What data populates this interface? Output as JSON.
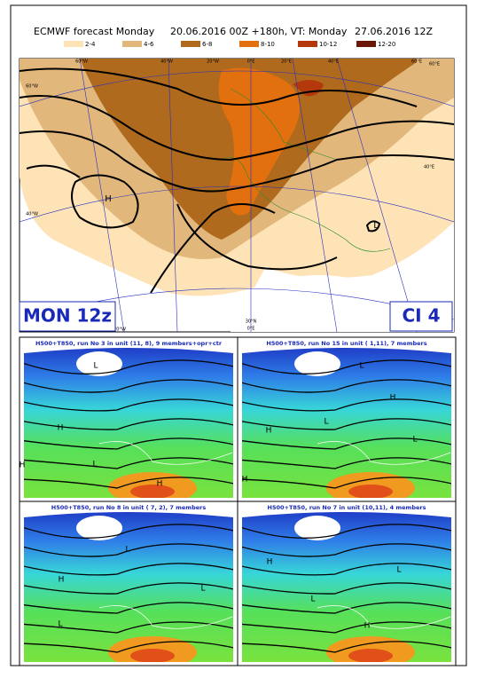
{
  "header": {
    "title_parts": [
      "ECMWF forecast Monday",
      "20.06.2016 00Z +180h, VT: Monday",
      "27.06.2016 12Z"
    ]
  },
  "legend": {
    "items": [
      {
        "label": "2-4",
        "color": "#fde3b6"
      },
      {
        "label": "4-6",
        "color": "#e2b77b"
      },
      {
        "label": "6-8",
        "color": "#b06a1e"
      },
      {
        "label": "8-10",
        "color": "#e2700f"
      },
      {
        "label": "10-12",
        "color": "#b3380b"
      },
      {
        "label": "12-20",
        "color": "#6a170a"
      }
    ]
  },
  "main_map": {
    "day_label": "MON 12z",
    "ci_label": "CI  4",
    "grid_labels": [
      "60°W",
      "40°W",
      "20°W",
      "0°E",
      "20°E",
      "40°E",
      "60°E",
      "60°W",
      "40°W",
      "60°E",
      "40°E",
      "20°W",
      "30°N",
      "0°E"
    ],
    "pressure_labels": [
      "H",
      "L"
    ]
  },
  "panels": [
    {
      "title": "H500+T850, run No  3 in unit (11, 8),  9 members+opr+ctr",
      "pressure_labels": [
        "L",
        "H",
        "L",
        "H",
        "H"
      ]
    },
    {
      "title": "H500+T850, run No 15 in unit ( 1,11),  7 members",
      "pressure_labels": [
        "L",
        "H",
        "L",
        "H",
        "L",
        "H"
      ]
    },
    {
      "title": "H500+T850, run No  8 in unit ( 7, 2),  7 members",
      "pressure_labels": [
        "L",
        "H",
        "L",
        "L"
      ]
    },
    {
      "title": "H500+T850, run No  7 in unit (10,11),  4 members",
      "pressure_labels": [
        "H",
        "L",
        "L",
        "H"
      ]
    }
  ]
}
